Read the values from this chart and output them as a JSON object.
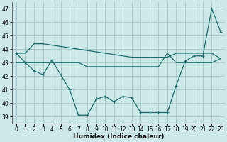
{
  "xlabel": "Humidex (Indice chaleur)",
  "bg_color": "#cce8e8",
  "grid_color": "#aacccc",
  "line_color": "#1a6b6b",
  "ylim": [
    38.5,
    47.5
  ],
  "xlim": [
    -0.5,
    23.5
  ],
  "yticks": [
    39,
    40,
    41,
    42,
    43,
    44,
    45,
    46,
    47
  ],
  "xticks": [
    0,
    1,
    2,
    3,
    4,
    5,
    6,
    7,
    8,
    9,
    10,
    11,
    12,
    13,
    14,
    15,
    16,
    17,
    18,
    19,
    20,
    21,
    22,
    23
  ],
  "series": {
    "main": [
      43.7,
      43.0,
      42.4,
      42.1,
      43.2,
      42.1,
      41.0,
      39.1,
      39.1,
      40.3,
      40.5,
      40.1,
      40.5,
      40.4,
      39.3,
      39.3,
      39.3,
      39.3,
      41.3,
      43.1,
      43.5,
      43.5,
      47.0,
      45.3
    ],
    "mid": [
      43.0,
      43.0,
      43.0,
      43.0,
      43.0,
      43.0,
      43.0,
      43.0,
      42.7,
      42.7,
      42.7,
      42.7,
      42.7,
      42.7,
      42.7,
      42.7,
      42.7,
      43.7,
      43.0,
      43.0,
      43.0,
      43.0,
      43.0,
      43.3
    ],
    "upper": [
      43.7,
      43.7,
      44.4,
      44.4,
      44.3,
      44.2,
      44.1,
      44.0,
      43.9,
      43.8,
      43.7,
      43.6,
      43.5,
      43.4,
      43.4,
      43.4,
      43.4,
      43.4,
      43.7,
      43.7,
      43.7,
      43.7,
      43.7,
      43.3
    ]
  }
}
